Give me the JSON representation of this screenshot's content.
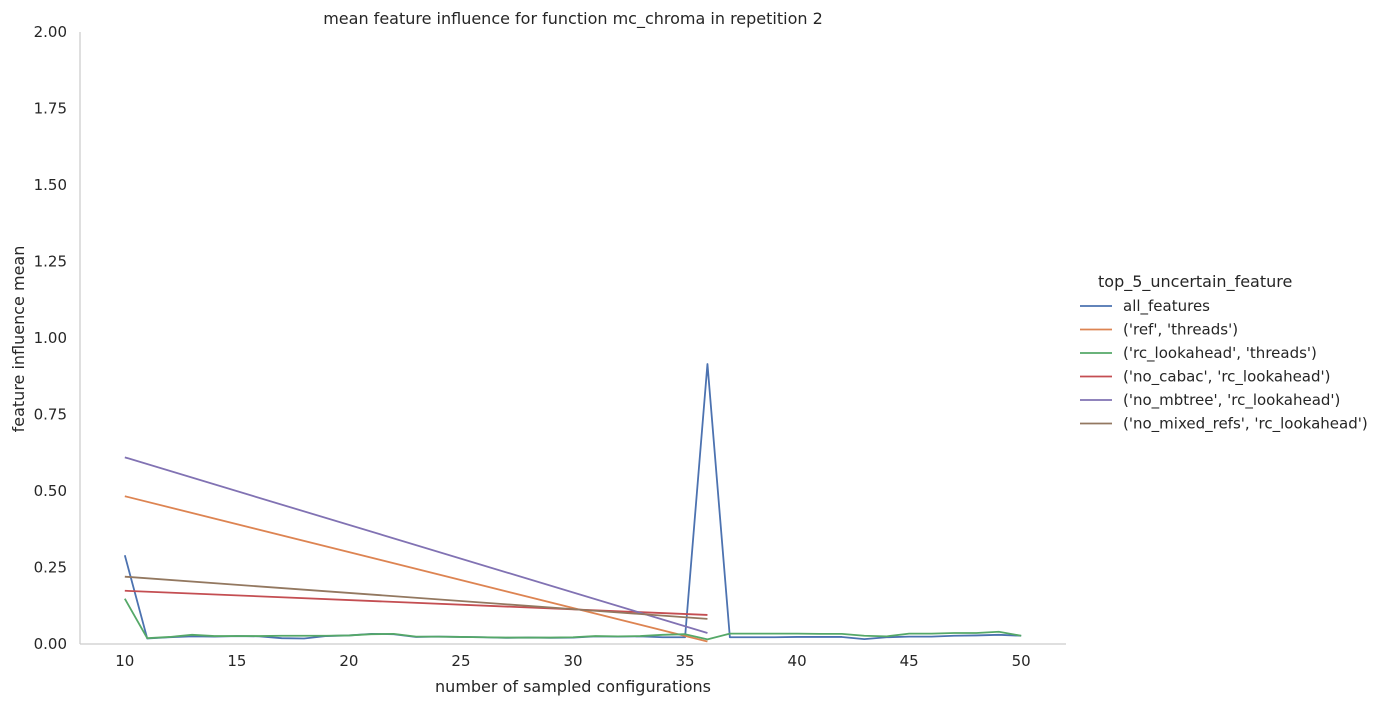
{
  "chart_data": {
    "type": "line",
    "title": "mean feature influence for function mc_chroma in repetition 2",
    "xlabel": "number of sampled configurations",
    "ylabel": "feature influence mean",
    "xlim": [
      8,
      52
    ],
    "ylim": [
      0,
      2.0
    ],
    "xticks": [
      10,
      15,
      20,
      25,
      30,
      35,
      40,
      45,
      50
    ],
    "yticks": [
      0,
      0.25,
      0.5,
      0.75,
      1.0,
      1.25,
      1.5,
      1.75,
      2.0
    ],
    "xtick_labels": [
      "10",
      "15",
      "20",
      "25",
      "30",
      "35",
      "40",
      "45",
      "50"
    ],
    "ytick_labels": [
      "0.00",
      "0.25",
      "0.50",
      "0.75",
      "1.00",
      "1.25",
      "1.50",
      "1.75",
      "2.00"
    ],
    "grid": false,
    "legend_title": "top_5_uncertain_feature",
    "legend_position": "right",
    "series": [
      {
        "name": "all_features",
        "color": "#4c72b0",
        "x": [
          10,
          11,
          12,
          13,
          14,
          15,
          16,
          17,
          18,
          19,
          20,
          21,
          22,
          23,
          24,
          25,
          26,
          27,
          28,
          29,
          30,
          31,
          32,
          33,
          34,
          35,
          36,
          37,
          38,
          39,
          40,
          41,
          42,
          43,
          44,
          45,
          46,
          47,
          48,
          49,
          50
        ],
        "y": [
          0.29,
          0.018,
          0.022,
          0.025,
          0.024,
          0.026,
          0.025,
          0.019,
          0.018,
          0.026,
          0.028,
          0.033,
          0.032,
          0.023,
          0.024,
          0.023,
          0.022,
          0.02,
          0.021,
          0.02,
          0.021,
          0.025,
          0.024,
          0.025,
          0.022,
          0.022,
          0.915,
          0.022,
          0.022,
          0.022,
          0.023,
          0.023,
          0.023,
          0.016,
          0.022,
          0.024,
          0.024,
          0.027,
          0.028,
          0.03,
          0.027
        ]
      },
      {
        "name": "('ref', 'threads')",
        "color": "#dd8452",
        "x": [
          10,
          36
        ],
        "y": [
          0.483,
          0.008
        ]
      },
      {
        "name": "('rc_lookahead', 'threads')",
        "color": "#55a868",
        "x": [
          10,
          11,
          12,
          13,
          14,
          15,
          16,
          17,
          18,
          19,
          20,
          21,
          22,
          23,
          24,
          25,
          26,
          27,
          28,
          29,
          30,
          31,
          32,
          33,
          34,
          35,
          36,
          37,
          38,
          39,
          40,
          41,
          42,
          43,
          44,
          45,
          46,
          47,
          48,
          49,
          50
        ],
        "y": [
          0.148,
          0.019,
          0.023,
          0.03,
          0.026,
          0.026,
          0.026,
          0.027,
          0.027,
          0.027,
          0.028,
          0.032,
          0.033,
          0.024,
          0.024,
          0.023,
          0.022,
          0.021,
          0.021,
          0.021,
          0.022,
          0.026,
          0.025,
          0.026,
          0.03,
          0.032,
          0.015,
          0.034,
          0.034,
          0.034,
          0.034,
          0.033,
          0.033,
          0.027,
          0.025,
          0.034,
          0.034,
          0.036,
          0.036,
          0.04,
          0.027
        ]
      },
      {
        "name": "('no_cabac', 'rc_lookahead')",
        "color": "#c44e52",
        "x": [
          10,
          36
        ],
        "y": [
          0.174,
          0.095
        ]
      },
      {
        "name": "('no_mbtree', 'rc_lookahead')",
        "color": "#8172b3",
        "x": [
          10,
          36
        ],
        "y": [
          0.61,
          0.036
        ]
      },
      {
        "name": "('no_mixed_refs', 'rc_lookahead')",
        "color": "#937860",
        "x": [
          10,
          36
        ],
        "y": [
          0.22,
          0.082
        ]
      }
    ]
  }
}
